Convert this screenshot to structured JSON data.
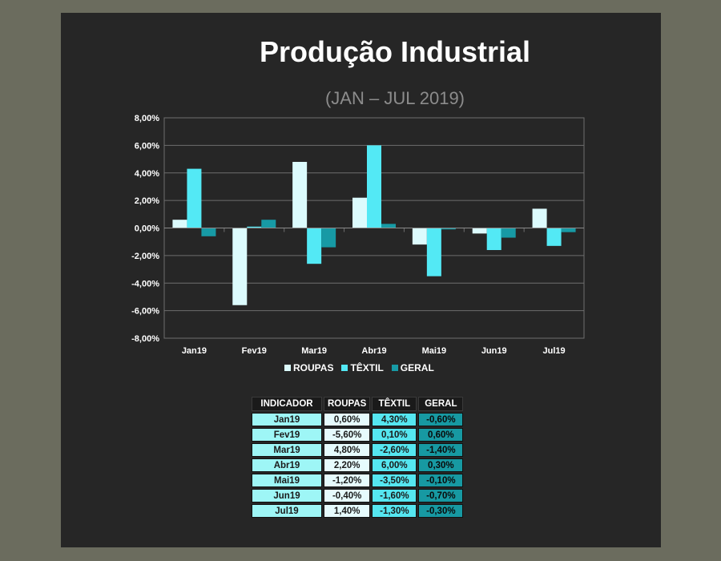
{
  "title": "Produção Industrial",
  "subtitle": "(JAN – JUL 2019)",
  "colors": {
    "ROUPAS": "#dcfbfd",
    "TÊXTIL": "#53e9f5",
    "GERAL": "#179aa5"
  },
  "chart_data": {
    "type": "bar",
    "categories": [
      "Jan19",
      "Fev19",
      "Mar19",
      "Abr19",
      "Mai19",
      "Jun19",
      "Jul19"
    ],
    "series": [
      {
        "name": "ROUPAS",
        "values": [
          0.6,
          -5.6,
          4.8,
          2.2,
          -1.2,
          -0.4,
          1.4
        ]
      },
      {
        "name": "TÊXTIL",
        "values": [
          4.3,
          0.1,
          -2.6,
          6.0,
          -3.5,
          -1.6,
          -1.3
        ]
      },
      {
        "name": "GERAL",
        "values": [
          -0.6,
          0.6,
          -1.4,
          0.3,
          -0.1,
          -0.7,
          -0.3
        ]
      }
    ],
    "ylim": [
      -8,
      8
    ],
    "yticks": [
      "8,00%",
      "6,00%",
      "4,00%",
      "2,00%",
      "0,00%",
      "-2,00%",
      "-4,00%",
      "-6,00%",
      "-8,00%"
    ],
    "grid": true,
    "legend": "bottom"
  },
  "table": {
    "headers": [
      "INDICADOR",
      "ROUPAS",
      "TÊXTIL",
      "GERAL"
    ],
    "rows": [
      [
        "Jan19",
        "0,60%",
        "4,30%",
        "-0,60%"
      ],
      [
        "Fev19",
        "-5,60%",
        "0,10%",
        "0,60%"
      ],
      [
        "Mar19",
        "4,80%",
        "-2,60%",
        "-1,40%"
      ],
      [
        "Abr19",
        "2,20%",
        "6,00%",
        "0,30%"
      ],
      [
        "Mai19",
        "-1,20%",
        "-3,50%",
        "-0,10%"
      ],
      [
        "Jun19",
        "-0,40%",
        "-1,60%",
        "-0,70%"
      ],
      [
        "Jul19",
        "1,40%",
        "-1,30%",
        "-0,30%"
      ]
    ]
  }
}
